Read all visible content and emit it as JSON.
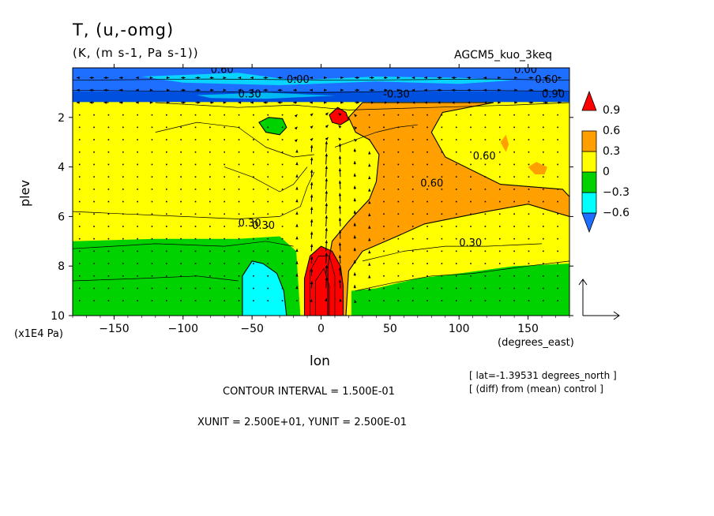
{
  "chart_data": {
    "type": "heatmap",
    "title": "T, (u,-omg)",
    "units_line": "(K, (m s-1, Pa s-1))",
    "experiment": "AGCM5_kuo_3keq",
    "xlabel": "lon",
    "x_unit": "(degrees_east)",
    "ylabel": "plev",
    "y_unit": "(x1E4 Pa)",
    "xlim": [
      -180,
      180
    ],
    "ylim": [
      10,
      0
    ],
    "x_ticks": [
      -150,
      -100,
      -50,
      0,
      50,
      100,
      150
    ],
    "y_ticks": [
      2,
      4,
      6,
      8,
      10
    ],
    "contour_interval_text": "CONTOUR INTERVAL = 1.500E-01",
    "vector_scale_text": "XUNIT = 2.500E+01, YUNIT = 2.500E-01",
    "info_lines": [
      "[ lat=-1.39531 degrees_north ]",
      "[ (diff) from (mean) control ]"
    ],
    "colorbar": {
      "labels": [
        "0.9",
        "0.6",
        "0.3",
        "0",
        "-0.3",
        "-0.6"
      ],
      "levels": [
        -0.6,
        -0.3,
        0,
        0.3,
        0.6,
        0.9
      ],
      "colors": [
        "#1e6eff",
        "#00ffff",
        "#00d200",
        "#ffff00",
        "#ffa000",
        "#ff0000"
      ]
    },
    "contour_labels": [
      "0.60",
      "0.60",
      "0.30",
      "0.30",
      "0.30",
      "-0.30",
      "0.30",
      "0.60",
      "0.00",
      "0.00",
      "0.60",
      "0.90"
    ],
    "regions": [
      {
        "name": "upper-negative-band",
        "value": -0.6,
        "lon": [
          -180,
          180
        ],
        "plev": [
          0.3,
          1.4
        ]
      },
      {
        "name": "west-cyan-pool",
        "value": -0.3,
        "lon": [
          -57,
          -25
        ],
        "plev": [
          7.8,
          10
        ]
      },
      {
        "name": "surface-red-core",
        "value": 0.9,
        "lon": [
          -12,
          20
        ],
        "plev": [
          7.2,
          10
        ]
      },
      {
        "name": "upper-red-spot",
        "value": 0.9,
        "lon": [
          5,
          20
        ],
        "plev": [
          1.6,
          2.2
        ]
      },
      {
        "name": "green-upper-patch",
        "value": 0.15,
        "lon": [
          -45,
          -25
        ],
        "plev": [
          2,
          2.6
        ]
      }
    ]
  }
}
